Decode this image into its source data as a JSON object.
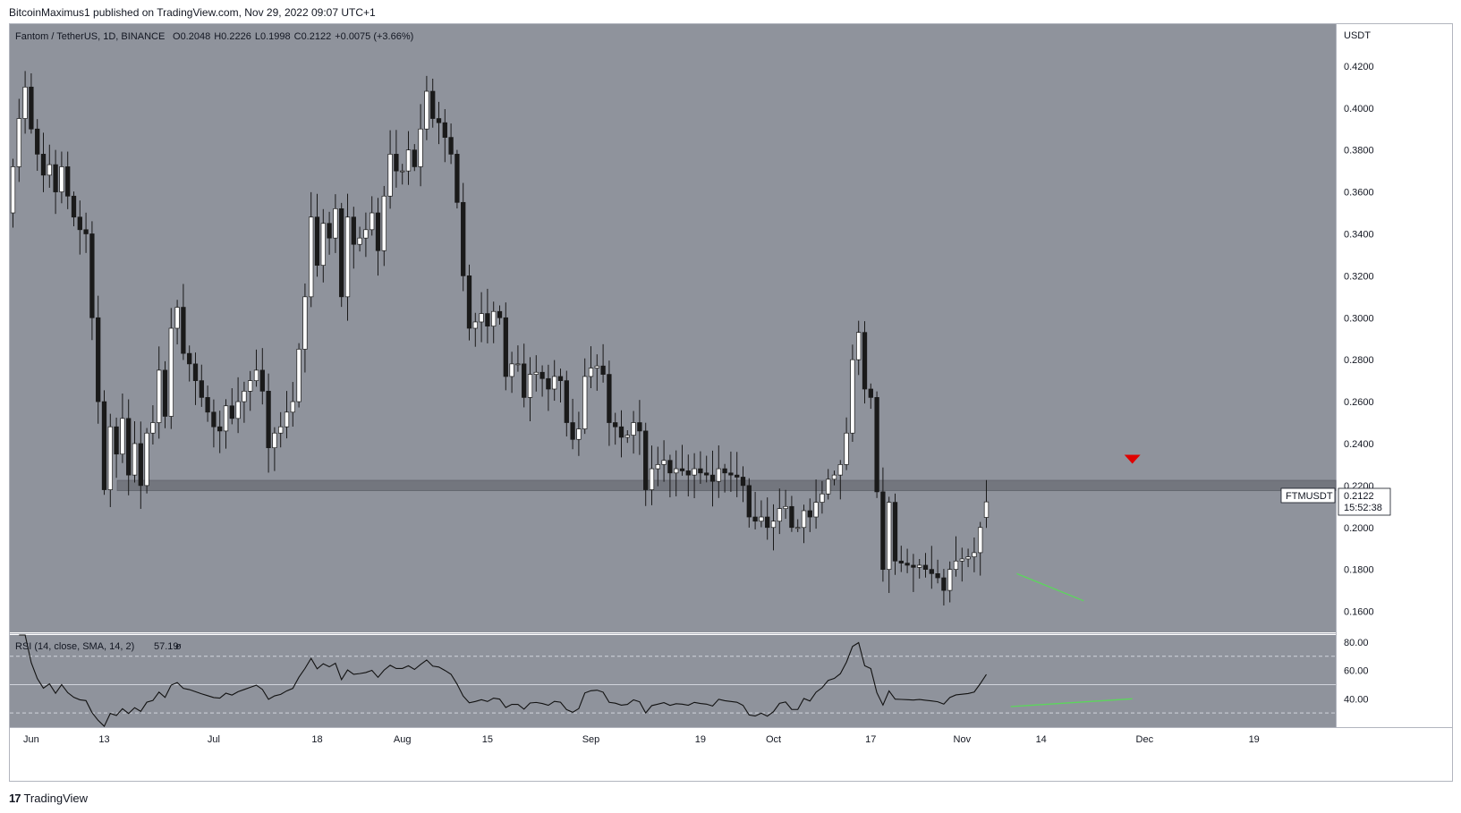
{
  "header": {
    "publisher_line": "BitcoinMaximus1 published on TradingView.com, Nov 29, 2022 09:07 UTC+1"
  },
  "footer": {
    "brand_mark": "17",
    "brand_name": "TradingView"
  },
  "legend": {
    "symbol": "Fantom / TetherUS, 1D, BINANCE",
    "o_label": "O",
    "o": "0.2048",
    "h_label": "H",
    "h": "0.2226",
    "l_label": "L",
    "l": "0.1998",
    "c_label": "C",
    "c": "0.2122",
    "change": "+0.0075 (+3.66%)"
  },
  "rsi_legend": {
    "label": "RSI (14, close, SMA, 14, 2)",
    "value": "57.19",
    "extra": "ø"
  },
  "price_axis": {
    "currency": "USDT",
    "ticks": [
      "0.4200",
      "0.4000",
      "0.3800",
      "0.3600",
      "0.3400",
      "0.3200",
      "0.3000",
      "0.2800",
      "0.2600",
      "0.2400",
      "0.2200",
      "0.2000",
      "0.1800",
      "0.1600"
    ],
    "symbol_tag": "FTMUSDT",
    "last_price": "0.2122",
    "countdown": "15:52:38"
  },
  "rsi_axis": {
    "ticks": [
      "80.00",
      "60.00",
      "40.00"
    ]
  },
  "time_axis": {
    "labels": [
      "Jun",
      "13",
      "Jul",
      "18",
      "Aug",
      "15",
      "Sep",
      "19",
      "Oct",
      "17",
      "Nov",
      "14",
      "Dec",
      "19"
    ]
  },
  "colors": {
    "plot_bg": "#8f939c",
    "bull_body": "#ffffff",
    "bear_body": "#1a1a1a",
    "wick": "#1a1a1a",
    "zone": "#6e7179",
    "divergence": "#5cd65c",
    "marker": "#e00000"
  },
  "chart_data": [
    {
      "type": "candlestick",
      "title": "Fantom / TetherUS, 1D, BINANCE",
      "ylabel": "USDT",
      "ylim": [
        0.15,
        0.43
      ],
      "x_start": "2022-05-29",
      "x_end": "2022-11-29",
      "support_zone": [
        0.2175,
        0.2225
      ],
      "daily_closes": [
        0.372,
        0.395,
        0.41,
        0.39,
        0.378,
        0.368,
        0.373,
        0.36,
        0.372,
        0.358,
        0.348,
        0.342,
        0.34,
        0.3,
        0.26,
        0.218,
        0.248,
        0.235,
        0.252,
        0.225,
        0.24,
        0.22,
        0.245,
        0.25,
        0.275,
        0.253,
        0.295,
        0.305,
        0.283,
        0.278,
        0.27,
        0.262,
        0.255,
        0.248,
        0.246,
        0.258,
        0.252,
        0.26,
        0.265,
        0.27,
        0.275,
        0.265,
        0.238,
        0.245,
        0.248,
        0.255,
        0.26,
        0.285,
        0.31,
        0.348,
        0.325,
        0.345,
        0.338,
        0.352,
        0.31,
        0.348,
        0.335,
        0.338,
        0.342,
        0.35,
        0.332,
        0.358,
        0.378,
        0.37,
        0.37,
        0.38,
        0.372,
        0.39,
        0.408,
        0.395,
        0.393,
        0.386,
        0.378,
        0.355,
        0.32,
        0.295,
        0.298,
        0.302,
        0.296,
        0.303,
        0.3,
        0.272,
        0.278,
        0.278,
        0.262,
        0.273,
        0.274,
        0.271,
        0.266,
        0.272,
        0.27,
        0.25,
        0.242,
        0.247,
        0.272,
        0.276,
        0.277,
        0.273,
        0.25,
        0.248,
        0.243,
        0.244,
        0.25,
        0.246,
        0.218,
        0.228,
        0.23,
        0.232,
        0.226,
        0.228,
        0.227,
        0.225,
        0.228,
        0.226,
        0.225,
        0.222,
        0.228,
        0.226,
        0.225,
        0.224,
        0.22,
        0.205,
        0.203,
        0.205,
        0.2,
        0.203,
        0.209,
        0.21,
        0.2,
        0.2,
        0.208,
        0.205,
        0.212,
        0.216,
        0.223,
        0.225,
        0.23,
        0.245,
        0.28,
        0.293,
        0.266,
        0.262,
        0.217,
        0.18,
        0.212,
        0.184,
        0.183,
        0.182,
        0.181,
        0.182,
        0.18,
        0.178,
        0.176,
        0.17,
        0.18,
        0.184,
        0.185,
        0.186,
        0.188,
        0.2,
        0.2122
      ],
      "rsi": {
        "period": 14,
        "ylim": [
          20,
          85
        ],
        "bands": [
          70,
          50,
          30
        ],
        "last_value": 57.19
      },
      "annotations": [
        {
          "type": "bullish-divergence-price",
          "from": "2022-11-10",
          "to": "2022-11-21",
          "y": [
            0.178,
            0.165
          ]
        },
        {
          "type": "bullish-divergence-rsi",
          "from": "2022-11-09",
          "to": "2022-11-29",
          "y": [
            34.5,
            40.0
          ]
        },
        {
          "type": "rejection-marker",
          "date": "2022-11-29",
          "y": 0.227
        }
      ]
    }
  ]
}
